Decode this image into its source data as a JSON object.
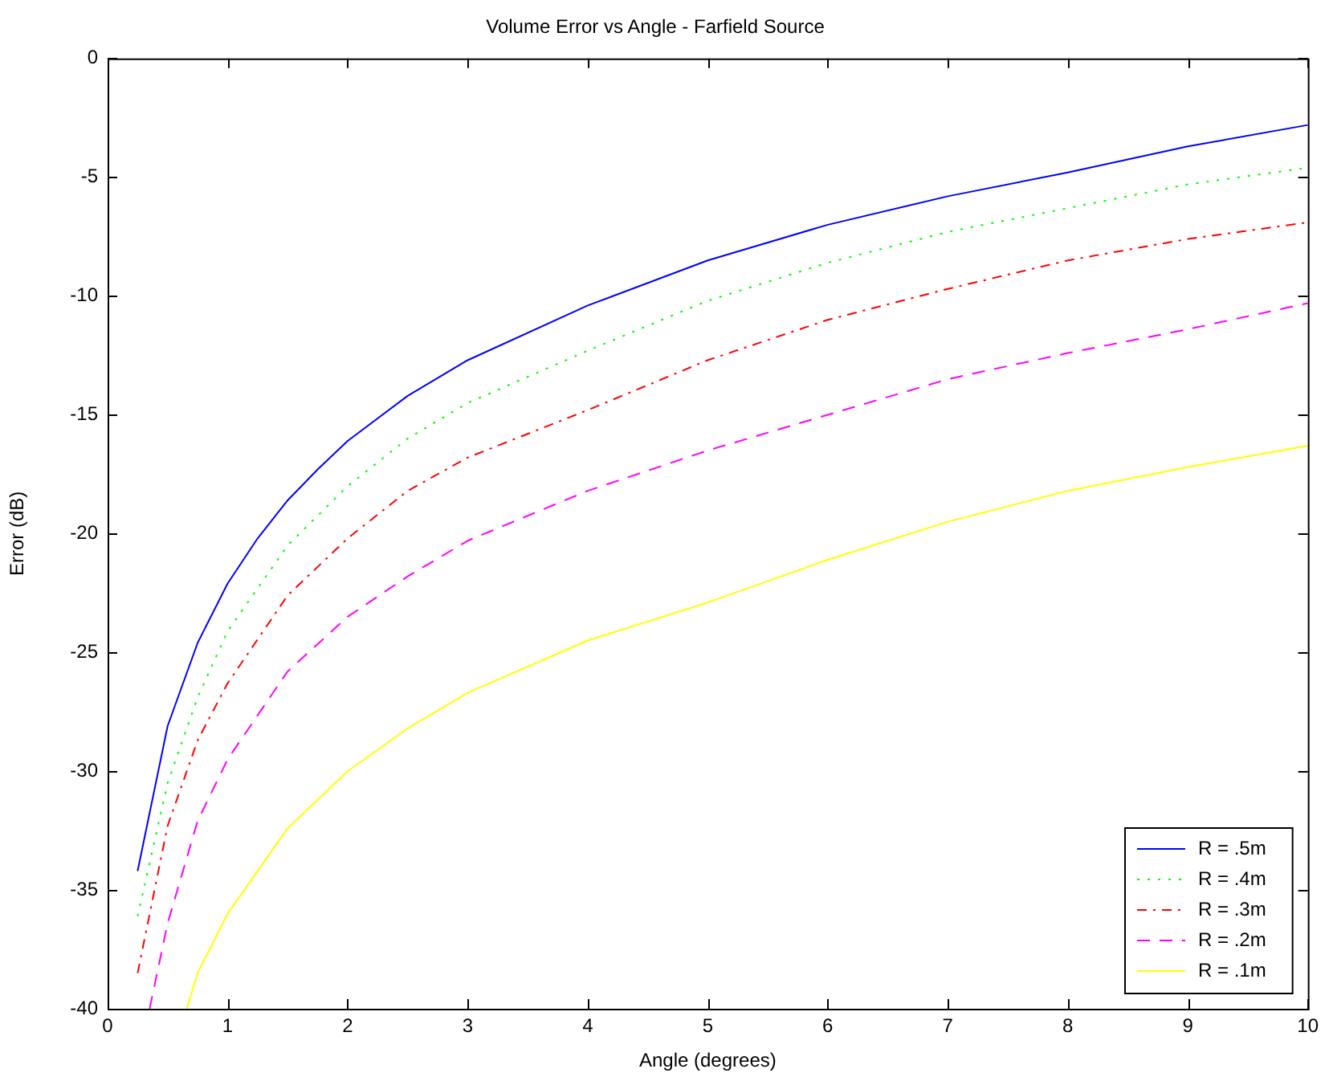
{
  "chart_data": {
    "type": "line",
    "title": "Volume Error vs Angle - Farfield Source",
    "xlabel": "Angle (degrees)",
    "ylabel": "Error (dB)",
    "xlim": [
      0,
      10
    ],
    "xticks": [
      0,
      1,
      2,
      3,
      4,
      5,
      6,
      7,
      8,
      9,
      10
    ],
    "ylim": [
      -40,
      0
    ],
    "yticks": [
      -40,
      -35,
      -30,
      -25,
      -20,
      -15,
      -10,
      -5,
      0
    ],
    "grid": false,
    "legend": "bottom right",
    "marker": "none",
    "series": [
      {
        "name": "R = .5m",
        "color": "#0000ff",
        "line_style": "solid",
        "x": [
          0.25,
          0.5,
          0.75,
          1,
          1.25,
          1.5,
          1.75,
          2,
          2.5,
          3,
          4,
          5,
          6,
          7,
          8,
          9,
          10
        ],
        "values": [
          -34.2,
          -28.1,
          -24.6,
          -22.1,
          -20.2,
          -18.6,
          -17.3,
          -16.1,
          -14.2,
          -12.7,
          -10.4,
          -8.5,
          -7.0,
          -5.8,
          -4.8,
          -3.7,
          -2.8
        ]
      },
      {
        "name": "R = .4m",
        "color": "#00ff00",
        "line_style": "dotted",
        "x": [
          0.25,
          0.5,
          0.75,
          1,
          1.5,
          2,
          2.5,
          3,
          4,
          5,
          6,
          7,
          8,
          9,
          10
        ],
        "values": [
          -36.1,
          -30.5,
          -26.9,
          -24.1,
          -20.5,
          -18.0,
          -16.0,
          -14.5,
          -12.3,
          -10.2,
          -8.6,
          -7.3,
          -6.3,
          -5.3,
          -4.6
        ]
      },
      {
        "name": "R = .3m",
        "color": "#ff0000",
        "line_style": "dashdot",
        "x": [
          0.25,
          0.5,
          0.75,
          1,
          1.5,
          2,
          2.5,
          3,
          4,
          5,
          6,
          7,
          8,
          9,
          10
        ],
        "values": [
          -38.5,
          -32.3,
          -28.7,
          -26.3,
          -22.6,
          -20.2,
          -18.2,
          -16.8,
          -14.8,
          -12.7,
          -11.0,
          -9.7,
          -8.5,
          -7.6,
          -6.9
        ]
      },
      {
        "name": "R = .2m",
        "color": "#ff00ff",
        "line_style": "dashed",
        "x": [
          0.35,
          0.5,
          0.75,
          1,
          1.5,
          2,
          2.5,
          3,
          4,
          5,
          6,
          7,
          8,
          9,
          10
        ],
        "values": [
          -40,
          -36.4,
          -32.1,
          -29.5,
          -25.8,
          -23.5,
          -21.8,
          -20.3,
          -18.2,
          -16.5,
          -15.0,
          -13.5,
          -12.4,
          -11.4,
          -10.3
        ]
      },
      {
        "name": "R = .1m",
        "color": "#ffff00",
        "line_style": "solid",
        "x": [
          0.66,
          0.75,
          1,
          1.5,
          2,
          2.5,
          3,
          4,
          5,
          6,
          7,
          8,
          9,
          10
        ],
        "values": [
          -40,
          -38.5,
          -36.0,
          -32.4,
          -30.0,
          -28.2,
          -26.7,
          -24.5,
          -22.9,
          -21.1,
          -19.5,
          -18.2,
          -17.2,
          -16.3
        ]
      }
    ]
  }
}
